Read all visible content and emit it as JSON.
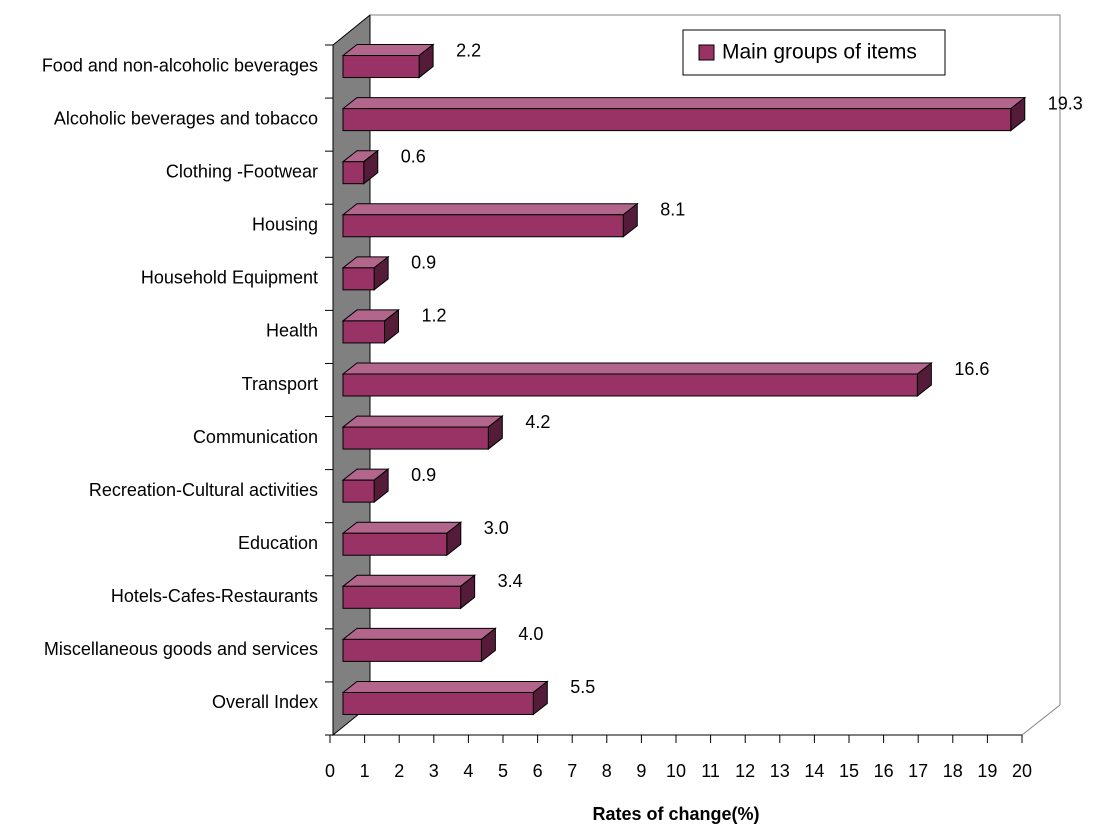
{
  "chart_data": {
    "type": "bar3d",
    "orientation": "horizontal",
    "categories": [
      "Food and non-alcoholic beverages",
      "Alcoholic beverages and tobacco",
      "Clothing -Footwear",
      "Housing",
      "Household Equipment",
      "Health",
      "Transport",
      "Communication",
      "Recreation-Cultural activities",
      "Education",
      "Hotels-Cafes-Restaurants",
      "Miscellaneous goods and services",
      "Overall Index"
    ],
    "series": [
      {
        "name": "Main groups of items",
        "color": "#993366",
        "values": [
          2.2,
          19.3,
          0.6,
          8.1,
          0.9,
          1.2,
          16.6,
          4.2,
          0.9,
          3,
          3.4,
          4,
          5.5
        ],
        "value_labels": [
          "2.2",
          "19.3",
          "0.6",
          "8.1",
          "0.9",
          "1.2",
          "16.6",
          "4.2",
          "0.9",
          "3.0",
          "3.4",
          "4.0",
          "5.5"
        ]
      }
    ],
    "xlabel": "Rates of change(%)",
    "xlim": [
      0,
      20
    ],
    "xticks": [
      0,
      1,
      2,
      3,
      4,
      5,
      6,
      7,
      8,
      9,
      10,
      11,
      12,
      13,
      14,
      15,
      16,
      17,
      18,
      19,
      20
    ],
    "legend": "top-right"
  }
}
